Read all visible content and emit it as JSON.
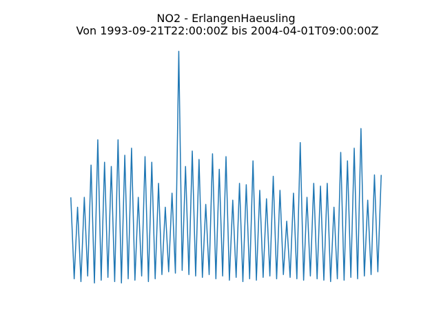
{
  "chart_data": {
    "type": "line",
    "title": "NO2 - ErlangenHaeusling",
    "subtitle": "Von 1993-09-21T22:00:00Z bis 2004-04-01T09:00:00Z",
    "color": "#1f77b4",
    "values": [
      61,
      3,
      54,
      1,
      61,
      5,
      84,
      0,
      102,
      2,
      86,
      4,
      83,
      1,
      102,
      0,
      91,
      3,
      96,
      2,
      61,
      5,
      90,
      1,
      86,
      3,
      71,
      6,
      54,
      8,
      64,
      7,
      165,
      9,
      83,
      6,
      94,
      5,
      88,
      4,
      56,
      6,
      92,
      3,
      81,
      5,
      90,
      2,
      59,
      4,
      71,
      1,
      70,
      3,
      87,
      2,
      66,
      4,
      60,
      5,
      76,
      3,
      66,
      6,
      44,
      4,
      64,
      3,
      100,
      2,
      61,
      5,
      71,
      3,
      69,
      2,
      71,
      1,
      54,
      3,
      93,
      2,
      87,
      4,
      96,
      3,
      110,
      5,
      59,
      6,
      77,
      8,
      77
    ],
    "xlim": [
      -4.65,
      96.65
    ],
    "ylim": [
      -8.25,
      173.25
    ]
  }
}
